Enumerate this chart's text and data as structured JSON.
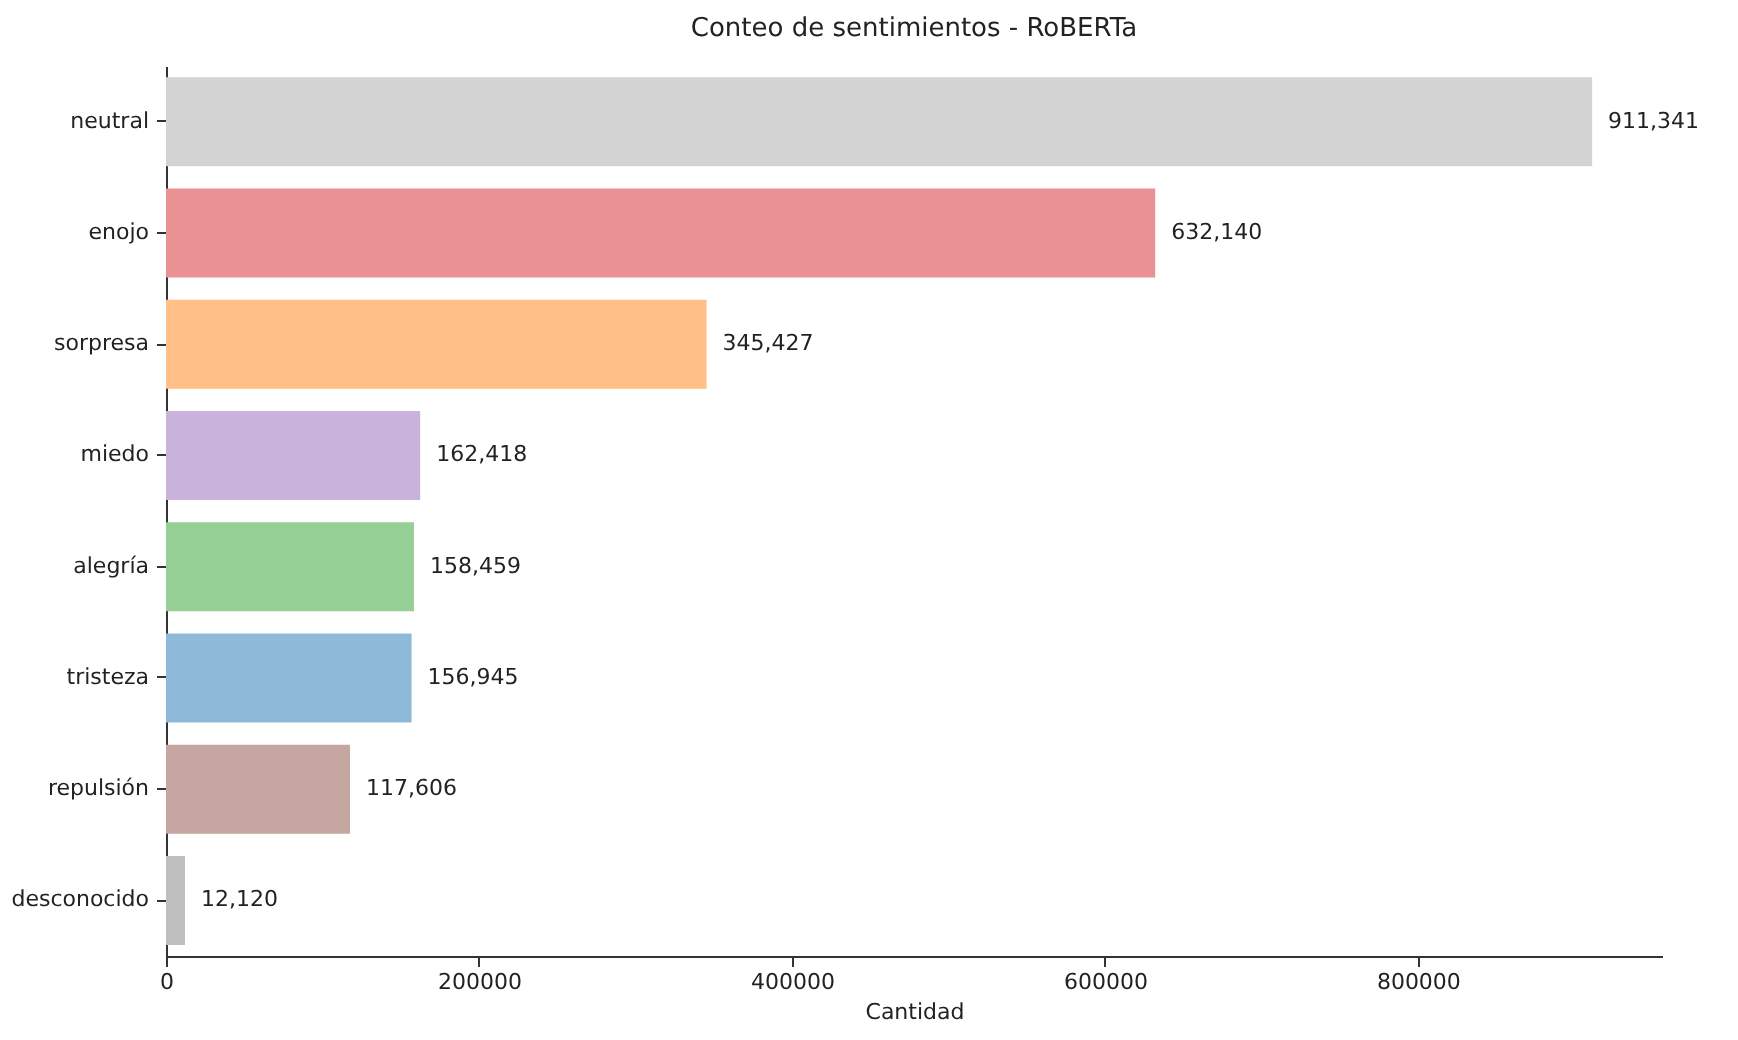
{
  "chart_data": {
    "type": "bar",
    "orientation": "horizontal",
    "title": "Conteo de sentimientos - RoBERTa",
    "xlabel": "Cantidad",
    "categories": [
      "neutral",
      "enojo",
      "sorpresa",
      "miedo",
      "alegría",
      "tristeza",
      "repulsión",
      "desconocido"
    ],
    "values": [
      911341,
      632140,
      345427,
      162418,
      158459,
      156945,
      117606,
      12120
    ],
    "colors": [
      "#d3d3d3",
      "#ea9293",
      "#ffbf86",
      "#c9b3dc",
      "#95cf95",
      "#8fb9d9",
      "#c5a6a0",
      "#bfbfbf"
    ],
    "value_labels": [
      "911,341",
      "632,140",
      "345,427",
      "162,418",
      "158,459",
      "156,945",
      "117,606",
      "12,120"
    ],
    "xlim": [
      0,
      956000
    ],
    "xticks": [
      0,
      200000,
      400000,
      600000,
      800000
    ],
    "grid": false
  }
}
